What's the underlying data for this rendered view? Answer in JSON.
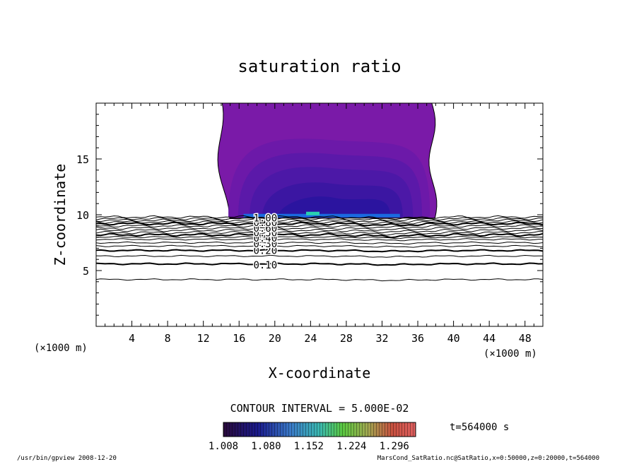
{
  "chart_data": {
    "type": "heatmap",
    "title": "saturation ratio",
    "xlabel": "X-coordinate",
    "ylabel": "Z-coordinate",
    "x_unit": "(×1000 m)",
    "y_unit": "(×1000 m)",
    "xlim": [
      0,
      50
    ],
    "ylim": [
      0,
      20
    ],
    "x_ticks": [
      4,
      8,
      12,
      16,
      20,
      24,
      28,
      32,
      36,
      40,
      44,
      48
    ],
    "y_ticks": [
      5,
      10,
      15
    ],
    "contour_interval_label": "CONTOUR INTERVAL = 5.000E-02",
    "contour_labels": [
      {
        "text": "0.10",
        "x": 17.6,
        "z": 5.5
      },
      {
        "text": "0.20",
        "x": 17.6,
        "z": 6.8
      },
      {
        "text": "0.30",
        "x": 17.6,
        "z": 7.4
      },
      {
        "text": "0.40",
        "x": 17.6,
        "z": 7.9
      },
      {
        "text": "0.50",
        "x": 17.6,
        "z": 8.4
      },
      {
        "text": "0.60",
        "x": 17.6,
        "z": 8.8
      },
      {
        "text": "0.80",
        "x": 17.6,
        "z": 9.3
      },
      {
        "text": "1.00",
        "x": 17.6,
        "z": 9.7
      }
    ],
    "contour_levels_z": [
      4.2,
      5.6,
      6.3,
      6.8,
      7.2,
      7.5,
      7.8,
      8.0,
      8.2,
      8.4,
      8.6,
      8.8,
      9.0,
      9.2,
      9.35,
      9.5,
      9.65,
      9.8
    ],
    "supersaturated_region": {
      "x_range": [
        14,
        38
      ],
      "z_range": [
        9.7,
        20
      ]
    },
    "colorbar": {
      "ticks": [
        "1.008",
        "1.080",
        "1.152",
        "1.224",
        "1.296"
      ],
      "range": [
        1.008,
        1.332
      ]
    },
    "time_label": "t=564000  s"
  },
  "footer": {
    "left": "/usr/bin/gpview   2008-12-20",
    "right": "MarsCond_SatRatio.nc@SatRatio,x=0:50000,z=0:20000,t=564000"
  }
}
